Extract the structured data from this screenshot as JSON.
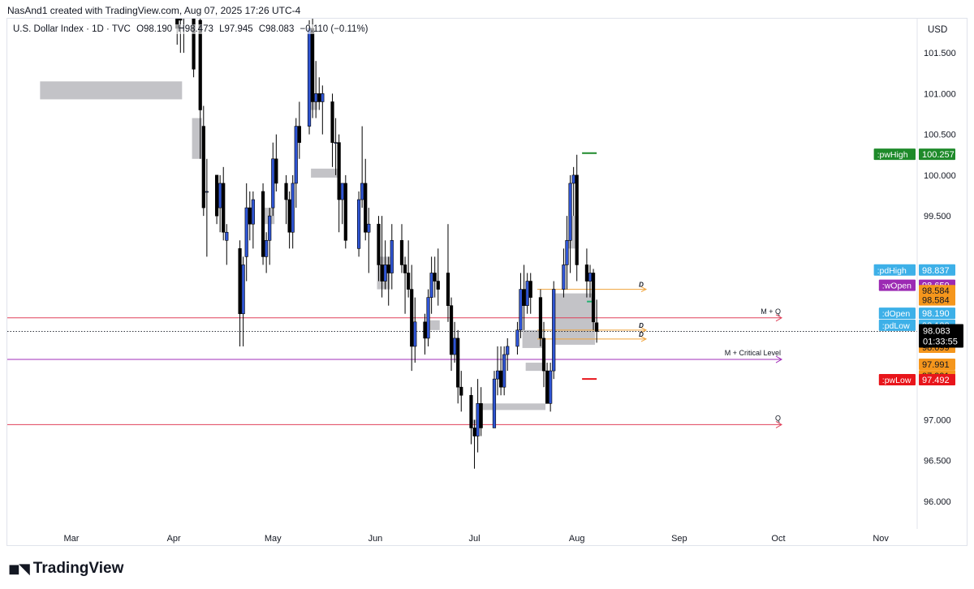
{
  "header": {
    "attribution": "NasAnd1 created with TradingView.com, Aug 07, 2025 17:26 UTC-4"
  },
  "legend": {
    "symbol": "U.S. Dollar Index · 1D · TVC",
    "open": "O98.190",
    "high": "H98.473",
    "low": "L97.945",
    "close": "C98.083",
    "change": "−0.110 (−0.11%)"
  },
  "price_scale": {
    "currency": "USD"
  },
  "footer": {
    "brand": "TradingView"
  },
  "colors": {
    "bull_body": "#2f55d4",
    "bear_body": "#000000",
    "zone": "#b8b8bd",
    "red_level": "#e0405a",
    "purple_level": "#a02cb8",
    "orange_line": "#f0a33a",
    "pwHigh": "#1e8a2a",
    "pwLow": "#e8151b"
  },
  "chart_data": {
    "type": "candlestick",
    "title": "U.S. Dollar Index · 1D · TVC",
    "ylim": [
      95.45,
      102.05
    ],
    "y_ticks": [
      101.5,
      101.0,
      100.5,
      100.0,
      99.5,
      97.0,
      96.5,
      96.0
    ],
    "y_tick_labels": [
      "101.500",
      "101.000",
      "100.500",
      "100.000",
      "99.500",
      "97.000",
      "96.500",
      "96.000"
    ],
    "x_ticks": [
      "Mar",
      "Apr",
      "May",
      "Jun",
      "Jul",
      "Aug",
      "Sep",
      "Oct",
      "Nov"
    ],
    "candles": [
      {
        "date": "2025-04-02",
        "o": 103.9,
        "h": 104.2,
        "l": 101.6,
        "c": 101.8
      },
      {
        "date": "2025-04-03",
        "o": 103.8,
        "h": 103.9,
        "l": 101.5,
        "c": 101.9
      },
      {
        "date": "2025-04-04",
        "o": 102.0,
        "h": 102.9,
        "l": 101.5,
        "c": 102.8
      },
      {
        "date": "2025-04-07",
        "o": 103.0,
        "h": 104.4,
        "l": 101.2,
        "c": 101.3
      },
      {
        "date": "2025-04-09",
        "o": 101.9,
        "h": 101.95,
        "l": 100.2,
        "c": 100.8
      },
      {
        "date": "2025-04-10",
        "o": 100.6,
        "h": 100.85,
        "l": 99.5,
        "c": 99.6
      },
      {
        "date": "2025-04-11",
        "o": 99.8,
        "h": 100.2,
        "l": 99.0,
        "c": 99.8
      },
      {
        "date": "2025-04-14",
        "o": 100.0,
        "h": 100.0,
        "l": 99.4,
        "c": 99.5
      },
      {
        "date": "2025-04-15",
        "o": 99.6,
        "h": 100.0,
        "l": 99.3,
        "c": 99.9
      },
      {
        "date": "2025-04-16",
        "o": 99.9,
        "h": 100.1,
        "l": 99.2,
        "c": 99.3
      },
      {
        "date": "2025-04-17",
        "o": 99.2,
        "h": 99.4,
        "l": 98.9,
        "c": 99.3
      },
      {
        "date": "2025-04-21",
        "o": 99.1,
        "h": 99.2,
        "l": 97.9,
        "c": 98.3
      },
      {
        "date": "2025-04-22",
        "o": 98.3,
        "h": 99.0,
        "l": 97.9,
        "c": 98.9
      },
      {
        "date": "2025-04-23",
        "o": 99.0,
        "h": 99.9,
        "l": 98.7,
        "c": 99.6
      },
      {
        "date": "2025-04-24",
        "o": 99.6,
        "h": 99.8,
        "l": 99.2,
        "c": 99.4
      },
      {
        "date": "2025-04-25",
        "o": 99.4,
        "h": 99.8,
        "l": 99.1,
        "c": 99.7
      },
      {
        "date": "2025-04-28",
        "o": 99.8,
        "h": 99.9,
        "l": 98.9,
        "c": 99.0
      },
      {
        "date": "2025-04-29",
        "o": 99.0,
        "h": 99.3,
        "l": 98.8,
        "c": 99.2
      },
      {
        "date": "2025-04-30",
        "o": 99.2,
        "h": 99.6,
        "l": 98.9,
        "c": 99.5
      },
      {
        "date": "2025-05-01",
        "o": 99.6,
        "h": 100.4,
        "l": 99.5,
        "c": 100.2
      },
      {
        "date": "2025-05-02",
        "o": 100.2,
        "h": 100.5,
        "l": 99.8,
        "c": 99.9
      },
      {
        "date": "2025-05-05",
        "o": 99.9,
        "h": 100.0,
        "l": 99.4,
        "c": 99.7
      },
      {
        "date": "2025-05-06",
        "o": 99.7,
        "h": 99.8,
        "l": 99.1,
        "c": 99.3
      },
      {
        "date": "2025-05-07",
        "o": 99.3,
        "h": 100.0,
        "l": 99.1,
        "c": 99.9
      },
      {
        "date": "2025-05-08",
        "o": 99.9,
        "h": 100.7,
        "l": 99.6,
        "c": 100.6
      },
      {
        "date": "2025-05-09",
        "o": 100.6,
        "h": 100.9,
        "l": 100.2,
        "c": 100.4
      },
      {
        "date": "2025-05-12",
        "o": 100.6,
        "h": 101.9,
        "l": 100.5,
        "c": 101.8
      },
      {
        "date": "2025-05-13",
        "o": 101.8,
        "h": 101.95,
        "l": 100.7,
        "c": 100.9
      },
      {
        "date": "2025-05-14",
        "o": 100.9,
        "h": 101.4,
        "l": 100.7,
        "c": 101.0
      },
      {
        "date": "2025-05-15",
        "o": 101.0,
        "h": 101.2,
        "l": 100.8,
        "c": 100.9
      },
      {
        "date": "2025-05-16",
        "o": 100.9,
        "h": 101.1,
        "l": 100.5,
        "c": 101.0
      },
      {
        "date": "2025-05-19",
        "o": 100.9,
        "h": 101.0,
        "l": 100.1,
        "c": 100.4
      },
      {
        "date": "2025-05-20",
        "o": 100.4,
        "h": 100.7,
        "l": 100.0,
        "c": 100.4
      },
      {
        "date": "2025-05-21",
        "o": 100.4,
        "h": 100.5,
        "l": 99.3,
        "c": 99.7
      },
      {
        "date": "2025-05-22",
        "o": 99.7,
        "h": 99.9,
        "l": 99.4,
        "c": 99.9
      },
      {
        "date": "2025-05-23",
        "o": 99.9,
        "h": 100.0,
        "l": 99.1,
        "c": 99.2
      },
      {
        "date": "2025-05-27",
        "o": 99.1,
        "h": 99.8,
        "l": 99.0,
        "c": 99.7
      },
      {
        "date": "2025-05-28",
        "o": 99.7,
        "h": 100.6,
        "l": 99.6,
        "c": 99.9
      },
      {
        "date": "2025-05-29",
        "o": 99.9,
        "h": 100.2,
        "l": 99.2,
        "c": 99.3
      },
      {
        "date": "2025-05-30",
        "o": 99.3,
        "h": 99.6,
        "l": 98.8,
        "c": 99.4
      },
      {
        "date": "2025-06-02",
        "o": 99.4,
        "h": 99.5,
        "l": 98.7,
        "c": 98.9
      },
      {
        "date": "2025-06-03",
        "o": 98.9,
        "h": 99.5,
        "l": 98.5,
        "c": 98.7
      },
      {
        "date": "2025-06-04",
        "o": 98.7,
        "h": 99.2,
        "l": 98.6,
        "c": 98.9
      },
      {
        "date": "2025-06-05",
        "o": 98.9,
        "h": 99.0,
        "l": 98.4,
        "c": 98.8
      },
      {
        "date": "2025-06-06",
        "o": 98.8,
        "h": 99.4,
        "l": 98.6,
        "c": 99.2
      },
      {
        "date": "2025-06-09",
        "o": 99.2,
        "h": 99.4,
        "l": 98.8,
        "c": 98.9
      },
      {
        "date": "2025-06-10",
        "o": 98.9,
        "h": 99.0,
        "l": 98.3,
        "c": 98.8
      },
      {
        "date": "2025-06-11",
        "o": 98.8,
        "h": 99.2,
        "l": 98.5,
        "c": 98.6
      },
      {
        "date": "2025-06-12",
        "o": 98.6,
        "h": 98.9,
        "l": 97.6,
        "c": 97.9
      },
      {
        "date": "2025-06-13",
        "o": 97.9,
        "h": 98.5,
        "l": 97.7,
        "c": 98.2
      },
      {
        "date": "2025-06-16",
        "o": 98.2,
        "h": 98.3,
        "l": 97.8,
        "c": 98.0
      },
      {
        "date": "2025-06-17",
        "o": 98.0,
        "h": 98.6,
        "l": 97.9,
        "c": 98.5
      },
      {
        "date": "2025-06-18",
        "o": 98.5,
        "h": 99.0,
        "l": 98.3,
        "c": 98.8
      },
      {
        "date": "2025-06-19",
        "o": 98.8,
        "h": 99.0,
        "l": 98.5,
        "c": 98.7
      },
      {
        "date": "2025-06-20",
        "o": 98.7,
        "h": 99.1,
        "l": 98.4,
        "c": 98.6
      },
      {
        "date": "2025-06-23",
        "o": 98.8,
        "h": 99.4,
        "l": 98.2,
        "c": 98.4
      },
      {
        "date": "2025-06-24",
        "o": 98.4,
        "h": 98.5,
        "l": 97.6,
        "c": 97.8
      },
      {
        "date": "2025-06-25",
        "o": 97.8,
        "h": 98.2,
        "l": 97.7,
        "c": 98.0
      },
      {
        "date": "2025-06-26",
        "o": 98.0,
        "h": 98.1,
        "l": 97.2,
        "c": 97.4
      },
      {
        "date": "2025-06-27",
        "o": 97.4,
        "h": 97.6,
        "l": 97.1,
        "c": 97.3
      },
      {
        "date": "2025-06-30",
        "o": 97.3,
        "h": 97.4,
        "l": 96.7,
        "c": 96.9
      },
      {
        "date": "2025-07-01",
        "o": 96.9,
        "h": 97.0,
        "l": 96.4,
        "c": 96.8
      },
      {
        "date": "2025-07-02",
        "o": 96.8,
        "h": 97.5,
        "l": 96.6,
        "c": 97.2
      },
      {
        "date": "2025-07-03",
        "o": 97.2,
        "h": 97.4,
        "l": 96.8,
        "c": 96.9
      },
      {
        "date": "2025-07-07",
        "o": 96.9,
        "h": 97.6,
        "l": 96.9,
        "c": 97.5
      },
      {
        "date": "2025-07-08",
        "o": 97.5,
        "h": 97.9,
        "l": 97.3,
        "c": 97.6
      },
      {
        "date": "2025-07-09",
        "o": 97.6,
        "h": 97.9,
        "l": 97.3,
        "c": 97.4
      },
      {
        "date": "2025-07-10",
        "o": 97.4,
        "h": 97.9,
        "l": 97.3,
        "c": 97.8
      },
      {
        "date": "2025-07-11",
        "o": 97.8,
        "h": 98.0,
        "l": 97.6,
        "c": 97.9
      },
      {
        "date": "2025-07-14",
        "o": 97.9,
        "h": 98.2,
        "l": 97.8,
        "c": 98.1
      },
      {
        "date": "2025-07-15",
        "o": 98.1,
        "h": 98.8,
        "l": 98.0,
        "c": 98.6
      },
      {
        "date": "2025-07-16",
        "o": 98.6,
        "h": 98.9,
        "l": 98.1,
        "c": 98.4
      },
      {
        "date": "2025-07-17",
        "o": 98.4,
        "h": 98.8,
        "l": 98.3,
        "c": 98.7
      },
      {
        "date": "2025-07-18",
        "o": 98.7,
        "h": 98.8,
        "l": 98.3,
        "c": 98.5
      },
      {
        "date": "2025-07-21",
        "o": 98.5,
        "h": 98.6,
        "l": 97.9,
        "c": 98.0
      },
      {
        "date": "2025-07-22",
        "o": 98.0,
        "h": 98.2,
        "l": 97.4,
        "c": 97.6
      },
      {
        "date": "2025-07-23",
        "o": 97.6,
        "h": 97.7,
        "l": 97.2,
        "c": 97.2
      },
      {
        "date": "2025-07-24",
        "o": 97.2,
        "h": 97.7,
        "l": 97.1,
        "c": 97.6
      },
      {
        "date": "2025-07-25",
        "o": 97.6,
        "h": 98.7,
        "l": 97.5,
        "c": 98.6
      },
      {
        "date": "2025-07-28",
        "o": 98.6,
        "h": 99.1,
        "l": 98.5,
        "c": 98.9
      },
      {
        "date": "2025-07-29",
        "o": 98.9,
        "h": 99.5,
        "l": 98.6,
        "c": 99.2
      },
      {
        "date": "2025-07-30",
        "o": 99.2,
        "h": 100.0,
        "l": 98.8,
        "c": 99.9
      },
      {
        "date": "2025-07-31",
        "o": 99.9,
        "h": 100.1,
        "l": 99.5,
        "c": 100.0
      },
      {
        "date": "2025-08-01",
        "o": 100.0,
        "h": 100.25,
        "l": 98.7,
        "c": 98.9
      },
      {
        "date": "2025-08-04",
        "o": 98.9,
        "h": 99.1,
        "l": 98.5,
        "c": 98.7
      },
      {
        "date": "2025-08-05",
        "o": 98.7,
        "h": 98.9,
        "l": 98.5,
        "c": 98.8
      },
      {
        "date": "2025-08-06",
        "o": 98.8,
        "h": 98.85,
        "l": 98.1,
        "c": 98.2
      },
      {
        "date": "2025-08-07",
        "o": 98.19,
        "h": 98.473,
        "l": 97.945,
        "c": 98.083
      }
    ],
    "zones": [
      {
        "from": "2025-02-20",
        "to": "2025-04-03",
        "low": 101.95,
        "high": 102.05
      },
      {
        "from": "2025-02-20",
        "to": "2025-04-03",
        "low": 100.93,
        "high": 101.15
      },
      {
        "from": "2025-04-07",
        "to": "2025-04-09",
        "low": 100.2,
        "high": 100.7
      },
      {
        "from": "2025-05-13",
        "to": "2025-05-20",
        "low": 99.97,
        "high": 100.08
      },
      {
        "from": "2025-04-29",
        "to": "2025-05-01",
        "low": 99.4,
        "high": 99.6
      },
      {
        "from": "2025-05-13",
        "to": "2025-05-14",
        "low": 100.8,
        "high": 100.95
      },
      {
        "from": "2025-06-02",
        "to": "2025-06-05",
        "low": 98.6,
        "high": 99.0
      },
      {
        "from": "2025-06-17",
        "to": "2025-06-20",
        "low": 98.1,
        "high": 98.22
      },
      {
        "from": "2025-07-02",
        "to": "2025-07-22",
        "low": 97.12,
        "high": 97.2
      },
      {
        "from": "2025-07-01",
        "to": "2025-07-02",
        "low": 96.95,
        "high": 97.0
      },
      {
        "from": "2025-07-16",
        "to": "2025-07-21",
        "low": 97.88,
        "high": 98.1
      },
      {
        "from": "2025-07-17",
        "to": "2025-07-21",
        "low": 97.6,
        "high": 97.7
      },
      {
        "from": "2025-07-25",
        "to": "2025-08-06",
        "low": 97.92,
        "high": 98.55
      },
      {
        "from": "2025-07-30",
        "to": "2025-08-01",
        "low": 99.1,
        "high": 99.5
      }
    ],
    "levels": [
      {
        "price": 98.25,
        "label": "M + Q",
        "color": "#e0405a"
      },
      {
        "price": 97.74,
        "label": "M + Critical Level",
        "color": "#a02cb8"
      },
      {
        "price": 96.94,
        "label": "Q",
        "color": "#e0405a"
      }
    ],
    "current_price_line": 98.083,
    "markers": [
      {
        "price": 100.27,
        "color": "#1e8a2a"
      },
      {
        "price": 97.5,
        "color": "#e8151b"
      },
      {
        "price": 98.45,
        "color": "#20b070"
      }
    ],
    "d_lines": [
      {
        "price": 98.6,
        "label": "D"
      },
      {
        "price": 98.1,
        "label": "D"
      },
      {
        "price": 97.99,
        "label": "D"
      }
    ],
    "price_labels": [
      {
        "label": ":pwHigh",
        "value": "100.257",
        "price": 100.257,
        "color": "#1e8a2a"
      },
      {
        "label": ":pdHigh",
        "value": "98.837",
        "price": 98.837,
        "color": "#3db0e8"
      },
      {
        "label": ":wOpen",
        "value": "98.650",
        "price": 98.65,
        "color": "#9c2ab3"
      },
      {
        "label": "",
        "value": "98.584",
        "price": 98.584,
        "color": "#f5961c"
      },
      {
        "label": "",
        "value": "98.584",
        "price": 98.47,
        "color": "#f5961c"
      },
      {
        "label": ":dOpen",
        "value": "98.190",
        "price": 98.306,
        "color": "#3db0e8"
      },
      {
        "label": ":pdLow",
        "value": "98.128",
        "price": 98.16,
        "color": "#3db0e8"
      },
      {
        "label": "",
        "value": "98.099",
        "price": 98.02,
        "color": "#f5961c"
      },
      {
        "label": "",
        "value": "98.099",
        "price": 97.89,
        "color": "#f5961c"
      },
      {
        "label": "",
        "value": "97.991",
        "price": 97.68,
        "color": "#f5961c"
      },
      {
        "label": "",
        "value": "97.991",
        "price": 97.54,
        "color": "#f5961c"
      },
      {
        "label": ":pwLow",
        "value": "97.492",
        "price": 97.492,
        "color": "#e8151b"
      }
    ],
    "current_label": {
      "value": "98.083",
      "countdown": "01:33:55"
    }
  }
}
